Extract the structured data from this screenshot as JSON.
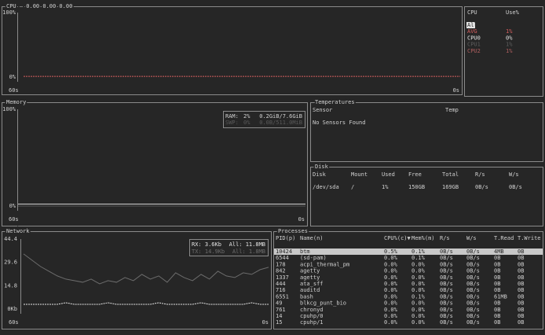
{
  "cpu": {
    "title": "CPU — 0.00 0.00 0.00",
    "yticks": [
      {
        "value": 100,
        "label": "100%"
      },
      {
        "value": 0,
        "label": "0%"
      }
    ],
    "xticks": [
      {
        "value": 60,
        "label": "60s"
      },
      {
        "value": 0,
        "label": "0s"
      }
    ],
    "avg_values": [
      1,
      1
    ],
    "legend": {
      "header": [
        "CPU",
        "Use%"
      ],
      "rows": [
        {
          "name": "All",
          "use": null,
          "color": "#262626",
          "selected": true
        },
        {
          "name": "AVG",
          "use": "1%",
          "color": "#d75f5f"
        },
        {
          "name": "CPU0",
          "use": "0%",
          "color": "#e4e4e4"
        },
        {
          "name": "CPU1",
          "use": "1%",
          "color": "#5f5f5f"
        },
        {
          "name": "CPU2",
          "use": "1%",
          "color": "#af5f5f"
        }
      ]
    }
  },
  "memory": {
    "title": "Memory",
    "yticks": [
      {
        "value": 100,
        "label": "100%"
      },
      {
        "value": 0,
        "label": "0%"
      }
    ],
    "xticks": [
      {
        "value": 60,
        "label": "60s"
      },
      {
        "value": 0,
        "label": "0s"
      }
    ],
    "series": [
      {
        "label": "RAM:",
        "percent": "2%",
        "amount": "0.2GiB/7.6GiB",
        "color": "#d0d0d0",
        "values": [
          2,
          2
        ]
      },
      {
        "label": "SWP:",
        "percent": "0%",
        "amount": "0.0B/511.0MiB",
        "color": "#5a5a5a",
        "values": [
          0,
          0
        ]
      }
    ]
  },
  "temperatures": {
    "title": "Temperatures",
    "columns": [
      "Sensor",
      "Temp"
    ],
    "message": "No Sensors Found"
  },
  "disk": {
    "title": "Disk",
    "columns": [
      "Disk",
      "Mount",
      "Used",
      "Free",
      "Total",
      "R/s",
      "W/s"
    ],
    "rows": [
      [
        "/dev/sda",
        "/",
        "1%",
        "150GB",
        "169GB",
        "0B/s",
        "0B/s"
      ]
    ]
  },
  "network": {
    "title": "Network",
    "yticks": [
      44.4,
      29.6,
      14.8,
      {
        "value": 0,
        "label": "0Kb"
      }
    ],
    "xticks": [
      {
        "value": 60,
        "label": "60s"
      },
      {
        "value": 0,
        "label": "0s"
      }
    ],
    "series": [
      {
        "name": "RX: 3.6Kb",
        "total": "All: 11.8MB",
        "color": "#e4e4e4",
        "dashed": true,
        "values": [
          3,
          3,
          3,
          3,
          3,
          4,
          3,
          3,
          3,
          3,
          4,
          3,
          3,
          3,
          3,
          3,
          4,
          3,
          3,
          3,
          3,
          4,
          3,
          3,
          3,
          3,
          3,
          4,
          3,
          3
        ]
      },
      {
        "name": "TX: 14.9Kb",
        "total": "All: 1.8MB",
        "color": "#6c6c6c",
        "dashed": false,
        "values": [
          35,
          31,
          27,
          24,
          21,
          19,
          18,
          17,
          19,
          16,
          18,
          17,
          20,
          18,
          22,
          19,
          21,
          17,
          23,
          20,
          18,
          22,
          19,
          24,
          21,
          20,
          23,
          22,
          25,
          26.5
        ]
      }
    ]
  },
  "processes": {
    "title": "Processes",
    "columns": [
      "PID(p)",
      "Name(n)",
      "CPU%(c)▼",
      "Mem%(m)",
      "R/s",
      "W/s",
      "T.Read",
      "T.Write"
    ],
    "rows": [
      [
        "10424",
        "btm",
        "0.5%",
        "0.1%",
        "0B/s",
        "0B/s",
        "4MB",
        "0B"
      ],
      [
        "6544",
        "(sd-pam)",
        "0.0%",
        "0.1%",
        "0B/s",
        "0B/s",
        "0B",
        "0B"
      ],
      [
        "178",
        "acpi_thermal_pm",
        "0.0%",
        "0.0%",
        "0B/s",
        "0B/s",
        "0B",
        "0B"
      ],
      [
        "842",
        "agetty",
        "0.0%",
        "0.0%",
        "0B/s",
        "0B/s",
        "0B",
        "0B"
      ],
      [
        "1337",
        "agetty",
        "0.0%",
        "0.0%",
        "0B/s",
        "0B/s",
        "0B",
        "0B"
      ],
      [
        "444",
        "ata_sff",
        "0.0%",
        "0.0%",
        "0B/s",
        "0B/s",
        "0B",
        "0B"
      ],
      [
        "716",
        "auditd",
        "0.0%",
        "0.0%",
        "0B/s",
        "0B/s",
        "0B",
        "0B"
      ],
      [
        "6551",
        "bash",
        "0.0%",
        "0.1%",
        "0B/s",
        "0B/s",
        "61MB",
        "0B"
      ],
      [
        "49",
        "blkcg_punt_bio",
        "0.0%",
        "0.0%",
        "0B/s",
        "0B/s",
        "0B",
        "0B"
      ],
      [
        "761",
        "chronyd",
        "0.0%",
        "0.0%",
        "0B/s",
        "0B/s",
        "0B",
        "0B"
      ],
      [
        "14",
        "cpuhp/0",
        "0.0%",
        "0.0%",
        "0B/s",
        "0B/s",
        "0B",
        "0B"
      ],
      [
        "15",
        "cpuhp/1",
        "0.0%",
        "0.0%",
        "0B/s",
        "0B/s",
        "0B",
        "0B"
      ]
    ]
  }
}
